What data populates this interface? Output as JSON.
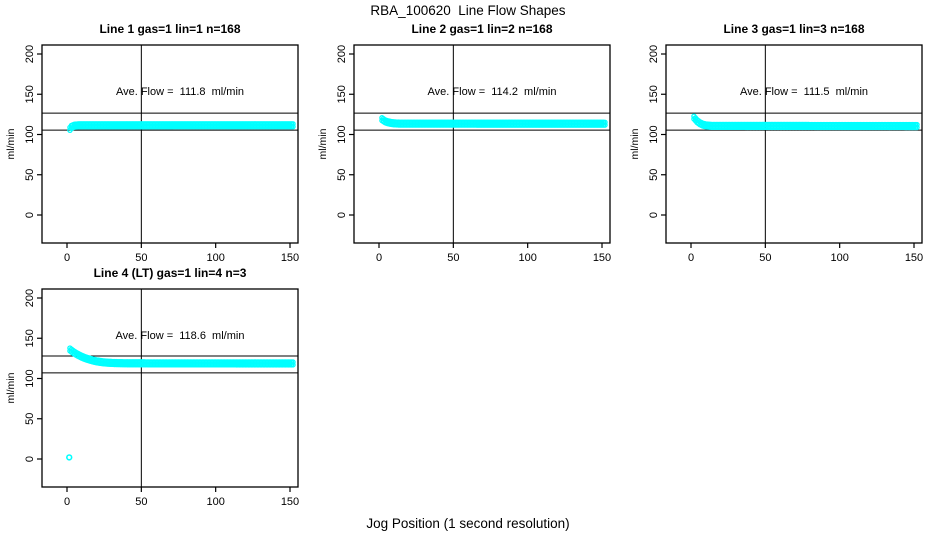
{
  "title": "RBA_100620  Line Flow Shapes",
  "xlabel": "Jog Position (1 second resolution)",
  "colors": {
    "points": "#00FFFF",
    "axis": "#000000",
    "background": "#ffffff"
  },
  "chart_data": [
    {
      "type": "scatter",
      "title": "Line 1 gas=1 lin=1 n=168",
      "gas": 1,
      "lin": 1,
      "n": 168,
      "annotation": "Ave. Flow =  111.8  ml/min",
      "ave_flow_ml_min": 111.8,
      "ylabel": "ml/min",
      "xticks": [
        0,
        50,
        100,
        150
      ],
      "yticks": [
        0,
        50,
        100,
        150,
        200
      ],
      "xlim": [
        -17,
        157
      ],
      "ylim": [
        -35,
        211
      ],
      "grid": false,
      "legend": "none",
      "vline_x": 50,
      "hlines_y": [
        126.5,
        105.5
      ],
      "series": {
        "name": "flow",
        "marker": "open-circle",
        "point_spacing_x": 1,
        "keypoints_xy": [
          [
            2,
            107
          ],
          [
            3,
            109.5
          ],
          [
            5,
            111
          ],
          [
            8,
            111.4
          ],
          [
            152,
            111.5
          ]
        ]
      },
      "extra_points_xy": []
    },
    {
      "type": "scatter",
      "title": "Line 2 gas=1 lin=2 n=168",
      "gas": 1,
      "lin": 2,
      "n": 168,
      "annotation": "Ave. Flow =  114.2  ml/min",
      "ave_flow_ml_min": 114.2,
      "ylabel": "ml/min",
      "xticks": [
        0,
        50,
        100,
        150
      ],
      "yticks": [
        0,
        50,
        100,
        150,
        200
      ],
      "xlim": [
        -17,
        157
      ],
      "ylim": [
        -35,
        211
      ],
      "grid": false,
      "legend": "none",
      "vline_x": 50,
      "hlines_y": [
        126.5,
        105.5
      ],
      "series": {
        "name": "flow",
        "marker": "open-circle",
        "point_spacing_x": 1,
        "keypoints_xy": [
          [
            2,
            119
          ],
          [
            4,
            116.5
          ],
          [
            6,
            115.2
          ],
          [
            8,
            114.4
          ],
          [
            10,
            113.9
          ],
          [
            14,
            113.5
          ],
          [
            152,
            113.4
          ]
        ]
      },
      "extra_points_xy": []
    },
    {
      "type": "scatter",
      "title": "Line 3 gas=1 lin=3 n=168",
      "gas": 1,
      "lin": 3,
      "n": 168,
      "annotation": "Ave. Flow =  111.5  ml/min",
      "ave_flow_ml_min": 111.5,
      "ylabel": "ml/min",
      "xticks": [
        0,
        50,
        100,
        150
      ],
      "yticks": [
        0,
        50,
        100,
        150,
        200
      ],
      "xlim": [
        -17,
        157
      ],
      "ylim": [
        -35,
        211
      ],
      "grid": false,
      "legend": "none",
      "vline_x": 50,
      "hlines_y": [
        126.5,
        105.5
      ],
      "series": {
        "name": "flow",
        "marker": "open-circle",
        "point_spacing_x": 1,
        "keypoints_xy": [
          [
            2,
            121
          ],
          [
            4,
            116.8
          ],
          [
            6,
            114
          ],
          [
            8,
            112.3
          ],
          [
            10,
            111.3
          ],
          [
            14,
            110.7
          ],
          [
            152,
            110.5
          ]
        ]
      },
      "extra_points_xy": []
    },
    {
      "type": "scatter",
      "title": "Line 4 (LT) gas=1 lin=4 n=3",
      "gas": 1,
      "lin": 4,
      "n": 3,
      "annotation": "Ave. Flow =  118.6  ml/min",
      "ave_flow_ml_min": 118.6,
      "ylabel": "ml/min",
      "xticks": [
        0,
        50,
        100,
        150
      ],
      "yticks": [
        0,
        50,
        100,
        150,
        200
      ],
      "xlim": [
        -17,
        157
      ],
      "ylim": [
        -35,
        211
      ],
      "grid": false,
      "legend": "none",
      "vline_x": 50,
      "hlines_y": [
        128,
        107
      ],
      "series": {
        "name": "flow",
        "marker": "open-circle",
        "point_spacing_x": 1,
        "keypoints_xy": [
          [
            2,
            136
          ],
          [
            4,
            133.2
          ],
          [
            6,
            130.8
          ],
          [
            8,
            128.8
          ],
          [
            10,
            127
          ],
          [
            12,
            125.5
          ],
          [
            14,
            124.2
          ],
          [
            16,
            123.1
          ],
          [
            18,
            122.1
          ],
          [
            20,
            121.3
          ],
          [
            24,
            120.2
          ],
          [
            28,
            119.6
          ],
          [
            32,
            119.2
          ],
          [
            40,
            118.9
          ],
          [
            60,
            118.8
          ],
          [
            152,
            118.7
          ]
        ]
      },
      "extra_points_xy": [
        [
          1.5,
          2
        ]
      ]
    }
  ]
}
